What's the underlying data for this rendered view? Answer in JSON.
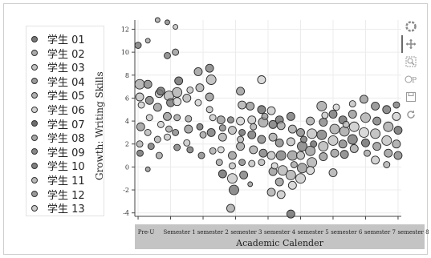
{
  "legend": {
    "items": [
      "学生 01",
      "学生 02",
      "学生 03",
      "学生 04",
      "学生 05",
      "学生 06",
      "学生 07",
      "学生 08",
      "学生 09",
      "学生 10",
      "学生 11",
      "学生 12",
      "学生 13"
    ],
    "colors": [
      "#777777",
      "#aaaaaa",
      "#c2c2c2",
      "#9b9b9b",
      "#b0b0b0",
      "#d2d2d2",
      "#6e6e6e",
      "#a5a5a5",
      "#888888",
      "#7f7f7f",
      "#b8b8b8",
      "#999999",
      "#c9c9c9"
    ]
  },
  "toolbar": {
    "icons": [
      "bokeh-logo-icon",
      "pan-icon",
      "box-zoom-icon",
      "wheel-zoom-icon",
      "save-icon",
      "reset-icon"
    ]
  },
  "chart_data": {
    "type": "scatter",
    "ylabel": "Growth: Writing Skills",
    "xlabel": "Academic Calender",
    "ylim": [
      -4.3,
      12.8
    ],
    "yticks": [
      -4,
      -2,
      0,
      2,
      4,
      6,
      8,
      10,
      12
    ],
    "xticklabels": [
      "Pre-U",
      "Semester 1",
      "semester 2",
      "semester 3",
      "semester 4",
      "semester 5",
      "semester 6",
      "semester 7",
      "semester 8"
    ],
    "xlim": [
      -0.1,
      8.1
    ],
    "grid": true,
    "legend_position": "left",
    "points": [
      {
        "x": 0.0,
        "y": 10.6,
        "s": 4
      },
      {
        "x": 0.05,
        "y": 7.2,
        "s": 6
      },
      {
        "x": 0.05,
        "y": 6.1,
        "s": 5
      },
      {
        "x": 0.08,
        "y": 3.5,
        "s": 5
      },
      {
        "x": 0.05,
        "y": 2.0,
        "s": 4
      },
      {
        "x": 0.1,
        "y": 5.4,
        "s": 4
      },
      {
        "x": 0.06,
        "y": 1.2,
        "s": 4
      },
      {
        "x": 0.3,
        "y": 11.0,
        "s": 3
      },
      {
        "x": 0.3,
        "y": 7.2,
        "s": 5
      },
      {
        "x": 0.35,
        "y": 5.8,
        "s": 5
      },
      {
        "x": 0.3,
        "y": 3.0,
        "s": 4
      },
      {
        "x": 0.3,
        "y": -0.2,
        "s": 3
      },
      {
        "x": 0.35,
        "y": 4.3,
        "s": 4
      },
      {
        "x": 0.4,
        "y": 1.8,
        "s": 4
      },
      {
        "x": 0.6,
        "y": 12.8,
        "s": 3
      },
      {
        "x": 0.65,
        "y": 6.4,
        "s": 5
      },
      {
        "x": 0.6,
        "y": 5.2,
        "s": 5
      },
      {
        "x": 0.6,
        "y": 2.4,
        "s": 4
      },
      {
        "x": 0.7,
        "y": 3.7,
        "s": 4
      },
      {
        "x": 0.7,
        "y": 6.6,
        "s": 5
      },
      {
        "x": 0.65,
        "y": 1.0,
        "s": 4
      },
      {
        "x": 0.9,
        "y": 12.6,
        "s": 3
      },
      {
        "x": 0.9,
        "y": 9.7,
        "s": 4
      },
      {
        "x": 0.95,
        "y": 6.2,
        "s": 6
      },
      {
        "x": 0.9,
        "y": 4.4,
        "s": 5
      },
      {
        "x": 0.9,
        "y": 2.6,
        "s": 4
      },
      {
        "x": 1.0,
        "y": 5.6,
        "s": 5
      },
      {
        "x": 0.95,
        "y": 3.3,
        "s": 4
      },
      {
        "x": 1.15,
        "y": 12.2,
        "s": 3
      },
      {
        "x": 1.15,
        "y": 10.0,
        "s": 4
      },
      {
        "x": 1.2,
        "y": 6.5,
        "s": 6
      },
      {
        "x": 1.2,
        "y": 5.7,
        "s": 5
      },
      {
        "x": 1.25,
        "y": 7.5,
        "s": 5
      },
      {
        "x": 1.2,
        "y": 4.3,
        "s": 4
      },
      {
        "x": 1.15,
        "y": 3.0,
        "s": 4
      },
      {
        "x": 1.2,
        "y": 1.7,
        "s": 4
      },
      {
        "x": 1.5,
        "y": 6.0,
        "s": 5
      },
      {
        "x": 1.55,
        "y": 3.3,
        "s": 5
      },
      {
        "x": 1.5,
        "y": 2.1,
        "s": 4
      },
      {
        "x": 1.6,
        "y": 1.5,
        "s": 4
      },
      {
        "x": 1.55,
        "y": 4.2,
        "s": 4
      },
      {
        "x": 1.6,
        "y": 6.7,
        "s": 4
      },
      {
        "x": 1.85,
        "y": 8.3,
        "s": 5
      },
      {
        "x": 1.9,
        "y": 6.9,
        "s": 5
      },
      {
        "x": 1.85,
        "y": 5.6,
        "s": 4
      },
      {
        "x": 1.9,
        "y": 3.5,
        "s": 4
      },
      {
        "x": 2.0,
        "y": 2.8,
        "s": 4
      },
      {
        "x": 1.95,
        "y": 1.0,
        "s": 4
      },
      {
        "x": 2.2,
        "y": 8.6,
        "s": 5
      },
      {
        "x": 2.25,
        "y": 7.6,
        "s": 6
      },
      {
        "x": 2.2,
        "y": 6.1,
        "s": 5
      },
      {
        "x": 2.3,
        "y": 4.3,
        "s": 4
      },
      {
        "x": 2.25,
        "y": 3.0,
        "s": 5
      },
      {
        "x": 2.3,
        "y": 1.4,
        "s": 4
      },
      {
        "x": 2.2,
        "y": 5.0,
        "s": 4
      },
      {
        "x": 2.55,
        "y": 4.1,
        "s": 5
      },
      {
        "x": 2.6,
        "y": 2.6,
        "s": 5
      },
      {
        "x": 2.55,
        "y": 1.5,
        "s": 4
      },
      {
        "x": 2.6,
        "y": -0.6,
        "s": 5
      },
      {
        "x": 2.5,
        "y": 0.4,
        "s": 4
      },
      {
        "x": 2.6,
        "y": 3.4,
        "s": 4
      },
      {
        "x": 2.85,
        "y": 4.1,
        "s": 4
      },
      {
        "x": 2.9,
        "y": 3.2,
        "s": 5
      },
      {
        "x": 2.9,
        "y": 1.0,
        "s": 5
      },
      {
        "x": 2.9,
        "y": -1.0,
        "s": 6
      },
      {
        "x": 2.95,
        "y": -2.0,
        "s": 6
      },
      {
        "x": 2.85,
        "y": -3.6,
        "s": 5
      },
      {
        "x": 2.9,
        "y": 0.1,
        "s": 4
      },
      {
        "x": 3.15,
        "y": 6.6,
        "s": 5
      },
      {
        "x": 3.2,
        "y": 5.4,
        "s": 5
      },
      {
        "x": 3.15,
        "y": 4.0,
        "s": 5
      },
      {
        "x": 3.2,
        "y": 3.0,
        "s": 4
      },
      {
        "x": 3.15,
        "y": 1.8,
        "s": 5
      },
      {
        "x": 3.2,
        "y": 0.4,
        "s": 4
      },
      {
        "x": 3.25,
        "y": -0.7,
        "s": 5
      },
      {
        "x": 3.15,
        "y": 2.4,
        "s": 4
      },
      {
        "x": 3.45,
        "y": 5.3,
        "s": 5
      },
      {
        "x": 3.5,
        "y": 4.1,
        "s": 5
      },
      {
        "x": 3.5,
        "y": 2.8,
        "s": 5
      },
      {
        "x": 3.55,
        "y": 1.5,
        "s": 5
      },
      {
        "x": 3.5,
        "y": 0.3,
        "s": 4
      },
      {
        "x": 3.45,
        "y": -1.5,
        "s": 3
      },
      {
        "x": 3.55,
        "y": 3.5,
        "s": 4
      },
      {
        "x": 3.8,
        "y": 7.6,
        "s": 5
      },
      {
        "x": 3.8,
        "y": 5.0,
        "s": 5
      },
      {
        "x": 3.85,
        "y": 3.9,
        "s": 6
      },
      {
        "x": 3.8,
        "y": 2.4,
        "s": 5
      },
      {
        "x": 3.85,
        "y": 1.2,
        "s": 5
      },
      {
        "x": 3.8,
        "y": 0.4,
        "s": 4
      },
      {
        "x": 3.9,
        "y": 4.4,
        "s": 4
      },
      {
        "x": 4.1,
        "y": 4.9,
        "s": 5
      },
      {
        "x": 4.15,
        "y": 3.7,
        "s": 5
      },
      {
        "x": 4.15,
        "y": 2.6,
        "s": 5
      },
      {
        "x": 4.1,
        "y": 1.0,
        "s": 5
      },
      {
        "x": 4.15,
        "y": -0.4,
        "s": 5
      },
      {
        "x": 4.1,
        "y": -2.2,
        "s": 5
      },
      {
        "x": 4.2,
        "y": 0.1,
        "s": 4
      },
      {
        "x": 4.35,
        "y": 4.1,
        "s": 5
      },
      {
        "x": 4.4,
        "y": 3.6,
        "s": 5
      },
      {
        "x": 4.35,
        "y": 2.1,
        "s": 5
      },
      {
        "x": 4.4,
        "y": 1.0,
        "s": 6
      },
      {
        "x": 4.45,
        "y": -0.3,
        "s": 6
      },
      {
        "x": 4.35,
        "y": -1.3,
        "s": 5
      },
      {
        "x": 4.4,
        "y": -2.4,
        "s": 5
      },
      {
        "x": 4.7,
        "y": 4.4,
        "s": 5
      },
      {
        "x": 4.75,
        "y": 3.3,
        "s": 5
      },
      {
        "x": 4.7,
        "y": 2.2,
        "s": 5
      },
      {
        "x": 4.75,
        "y": 1.0,
        "s": 6
      },
      {
        "x": 4.7,
        "y": -0.7,
        "s": 6
      },
      {
        "x": 4.75,
        "y": -1.6,
        "s": 5
      },
      {
        "x": 4.7,
        "y": -4.1,
        "s": 5
      },
      {
        "x": 4.8,
        "y": 0.2,
        "s": 4
      },
      {
        "x": 5.0,
        "y": 3.0,
        "s": 5
      },
      {
        "x": 5.05,
        "y": 1.8,
        "s": 6
      },
      {
        "x": 5.0,
        "y": 1.0,
        "s": 5
      },
      {
        "x": 5.05,
        "y": -0.1,
        "s": 6
      },
      {
        "x": 5.0,
        "y": -1.0,
        "s": 6
      },
      {
        "x": 5.1,
        "y": 2.4,
        "s": 4
      },
      {
        "x": 5.3,
        "y": 4.0,
        "s": 5
      },
      {
        "x": 5.35,
        "y": 2.9,
        "s": 6
      },
      {
        "x": 5.3,
        "y": 1.4,
        "s": 6
      },
      {
        "x": 5.35,
        "y": 0.4,
        "s": 6
      },
      {
        "x": 5.3,
        "y": -0.3,
        "s": 5
      },
      {
        "x": 5.4,
        "y": 2.0,
        "s": 4
      },
      {
        "x": 5.65,
        "y": 5.3,
        "s": 6
      },
      {
        "x": 5.7,
        "y": 3.9,
        "s": 5
      },
      {
        "x": 5.65,
        "y": 2.8,
        "s": 6
      },
      {
        "x": 5.7,
        "y": 1.8,
        "s": 6
      },
      {
        "x": 5.7,
        "y": 0.9,
        "s": 5
      },
      {
        "x": 5.75,
        "y": 4.5,
        "s": 4
      },
      {
        "x": 6.0,
        "y": 4.6,
        "s": 5
      },
      {
        "x": 6.05,
        "y": 3.3,
        "s": 6
      },
      {
        "x": 6.0,
        "y": 2.3,
        "s": 6
      },
      {
        "x": 6.05,
        "y": 1.2,
        "s": 5
      },
      {
        "x": 6.0,
        "y": -0.5,
        "s": 5
      },
      {
        "x": 6.1,
        "y": 5.2,
        "s": 4
      },
      {
        "x": 6.3,
        "y": 4.1,
        "s": 5
      },
      {
        "x": 6.35,
        "y": 3.1,
        "s": 6
      },
      {
        "x": 6.3,
        "y": 2.0,
        "s": 5
      },
      {
        "x": 6.35,
        "y": 1.1,
        "s": 5
      },
      {
        "x": 6.4,
        "y": 3.7,
        "s": 4
      },
      {
        "x": 6.6,
        "y": 4.6,
        "s": 5
      },
      {
        "x": 6.65,
        "y": 3.5,
        "s": 6
      },
      {
        "x": 6.6,
        "y": 2.4,
        "s": 6
      },
      {
        "x": 6.65,
        "y": 1.6,
        "s": 5
      },
      {
        "x": 6.6,
        "y": 5.5,
        "s": 4
      },
      {
        "x": 6.95,
        "y": 5.9,
        "s": 5
      },
      {
        "x": 7.0,
        "y": 4.3,
        "s": 6
      },
      {
        "x": 6.95,
        "y": 3.0,
        "s": 6
      },
      {
        "x": 7.0,
        "y": 2.1,
        "s": 5
      },
      {
        "x": 7.05,
        "y": 1.2,
        "s": 4
      },
      {
        "x": 7.3,
        "y": 5.3,
        "s": 5
      },
      {
        "x": 7.35,
        "y": 4.0,
        "s": 5
      },
      {
        "x": 7.3,
        "y": 2.9,
        "s": 6
      },
      {
        "x": 7.35,
        "y": 1.8,
        "s": 5
      },
      {
        "x": 7.3,
        "y": 0.6,
        "s": 5
      },
      {
        "x": 7.65,
        "y": 5.0,
        "s": 5
      },
      {
        "x": 7.7,
        "y": 3.5,
        "s": 6
      },
      {
        "x": 7.65,
        "y": 2.3,
        "s": 6
      },
      {
        "x": 7.7,
        "y": 1.2,
        "s": 5
      },
      {
        "x": 7.65,
        "y": 0.2,
        "s": 4
      },
      {
        "x": 7.95,
        "y": 4.4,
        "s": 5
      },
      {
        "x": 8.0,
        "y": 3.2,
        "s": 5
      },
      {
        "x": 7.95,
        "y": 2.0,
        "s": 5
      },
      {
        "x": 8.0,
        "y": 1.0,
        "s": 5
      },
      {
        "x": 7.95,
        "y": 5.4,
        "s": 4
      }
    ]
  }
}
